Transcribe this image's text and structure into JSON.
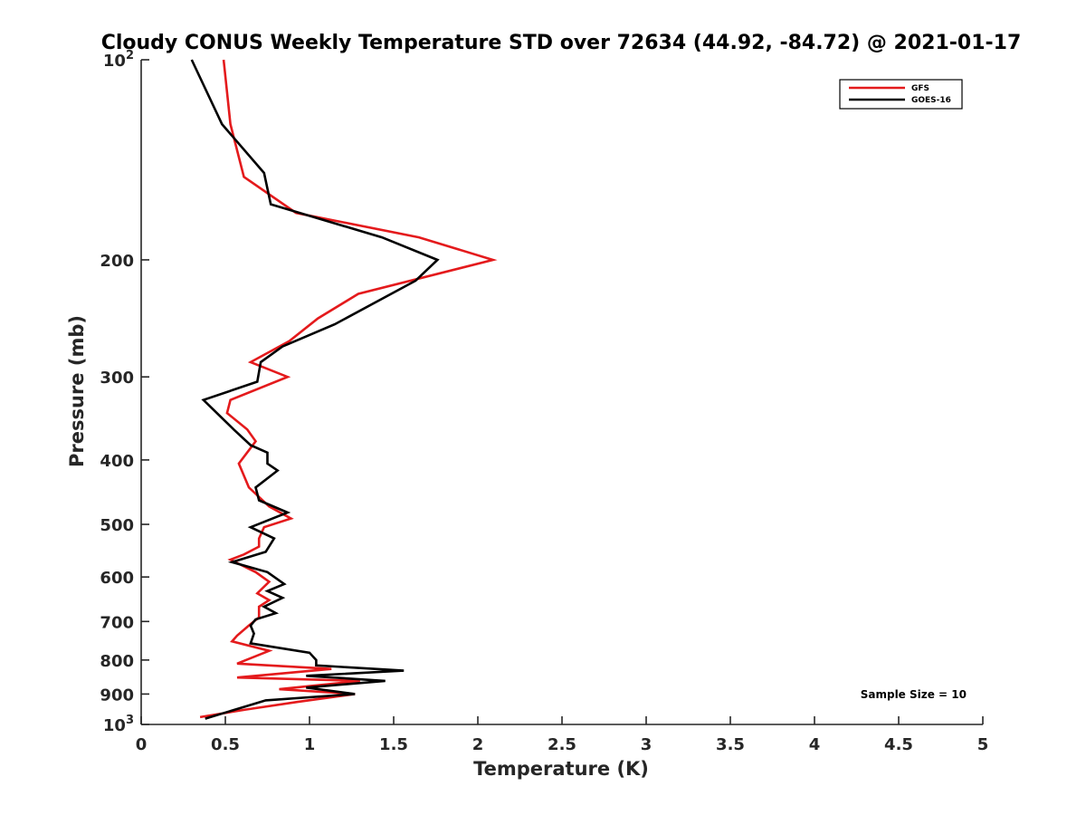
{
  "chart_data": {
    "type": "line",
    "title": "Cloudy CONUS Weekly Temperature STD over 72634 (44.92, -84.72) @ 2021-01-17",
    "xlabel": "Temperature (K)",
    "ylabel": "Pressure (mb)",
    "xlim": [
      0,
      5
    ],
    "ylim": [
      100,
      1000
    ],
    "yscale": "log",
    "yreversed": true,
    "xticks": [
      "0",
      "0.5",
      "1",
      "1.5",
      "2",
      "2.5",
      "3",
      "3.5",
      "4",
      "4.5",
      "5"
    ],
    "yticks": [
      {
        "value": 100,
        "base": "10",
        "exp": "2"
      },
      {
        "value": 200,
        "label": "200"
      },
      {
        "value": 300,
        "label": "300"
      },
      {
        "value": 400,
        "label": "400"
      },
      {
        "value": 500,
        "label": "500"
      },
      {
        "value": 600,
        "label": "600"
      },
      {
        "value": 700,
        "label": "700"
      },
      {
        "value": 800,
        "label": "800"
      },
      {
        "value": 900,
        "label": "900"
      },
      {
        "value": 1000,
        "base": "10",
        "exp": "3"
      }
    ],
    "grid": false,
    "legend_position": "top-right",
    "annotation": "Sample Size = 10",
    "series": [
      {
        "name": "GFS",
        "color": "#e41a1c",
        "points": [
          [
            0.49,
            100
          ],
          [
            0.53,
            125
          ],
          [
            0.61,
            150
          ],
          [
            0.92,
            170
          ],
          [
            1.65,
            185
          ],
          [
            2.09,
            200
          ],
          [
            1.29,
            225
          ],
          [
            1.05,
            245
          ],
          [
            0.88,
            265
          ],
          [
            0.65,
            285
          ],
          [
            0.87,
            300
          ],
          [
            0.53,
            325
          ],
          [
            0.51,
            340
          ],
          [
            0.63,
            360
          ],
          [
            0.68,
            375
          ],
          [
            0.58,
            405
          ],
          [
            0.64,
            440
          ],
          [
            0.76,
            470
          ],
          [
            0.89,
            490
          ],
          [
            0.73,
            505
          ],
          [
            0.7,
            525
          ],
          [
            0.7,
            540
          ],
          [
            0.61,
            555
          ],
          [
            0.53,
            565
          ],
          [
            0.68,
            590
          ],
          [
            0.76,
            610
          ],
          [
            0.69,
            635
          ],
          [
            0.76,
            650
          ],
          [
            0.7,
            665
          ],
          [
            0.7,
            690
          ],
          [
            0.64,
            710
          ],
          [
            0.57,
            735
          ],
          [
            0.54,
            750
          ],
          [
            0.76,
            775
          ],
          [
            0.57,
            810
          ],
          [
            1.13,
            825
          ],
          [
            0.57,
            850
          ],
          [
            1.3,
            860
          ],
          [
            0.82,
            885
          ],
          [
            1.27,
            900
          ],
          [
            0.93,
            925
          ],
          [
            0.62,
            950
          ],
          [
            0.35,
            975
          ]
        ]
      },
      {
        "name": "GOES-16",
        "color": "#000000",
        "points": [
          [
            0.3,
            100
          ],
          [
            0.48,
            125
          ],
          [
            0.73,
            148
          ],
          [
            0.77,
            165
          ],
          [
            1.43,
            185
          ],
          [
            1.76,
            200
          ],
          [
            1.63,
            215
          ],
          [
            1.15,
            250
          ],
          [
            0.84,
            270
          ],
          [
            0.71,
            285
          ],
          [
            0.69,
            305
          ],
          [
            0.37,
            325
          ],
          [
            0.55,
            360
          ],
          [
            0.65,
            380
          ],
          [
            0.75,
            390
          ],
          [
            0.75,
            405
          ],
          [
            0.81,
            415
          ],
          [
            0.68,
            440
          ],
          [
            0.7,
            460
          ],
          [
            0.87,
            480
          ],
          [
            0.65,
            505
          ],
          [
            0.79,
            525
          ],
          [
            0.74,
            550
          ],
          [
            0.54,
            570
          ],
          [
            0.75,
            590
          ],
          [
            0.85,
            615
          ],
          [
            0.75,
            630
          ],
          [
            0.84,
            645
          ],
          [
            0.73,
            665
          ],
          [
            0.8,
            680
          ],
          [
            0.68,
            695
          ],
          [
            0.65,
            710
          ],
          [
            0.67,
            730
          ],
          [
            0.65,
            755
          ],
          [
            1.0,
            780
          ],
          [
            1.04,
            800
          ],
          [
            1.04,
            815
          ],
          [
            1.56,
            830
          ],
          [
            0.98,
            845
          ],
          [
            1.45,
            860
          ],
          [
            0.98,
            880
          ],
          [
            1.27,
            900
          ],
          [
            0.74,
            920
          ],
          [
            0.38,
            980
          ]
        ]
      }
    ]
  }
}
